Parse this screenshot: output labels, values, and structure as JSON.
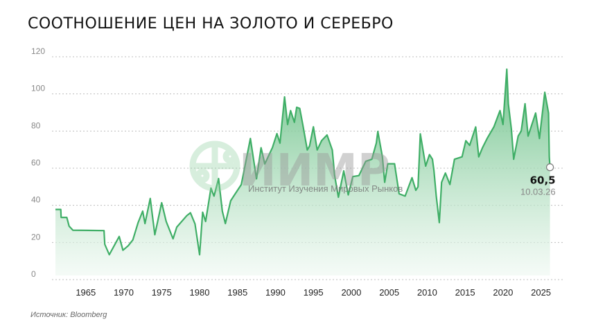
{
  "chart_data": {
    "type": "area",
    "title": "Соотношение цен на золото и серебро",
    "xlabel": "",
    "ylabel": "",
    "xlim": [
      1961,
      2026.5
    ],
    "ylim": [
      0,
      120
    ],
    "grid": true,
    "yticks": [
      "0",
      "20",
      "40",
      "60",
      "80",
      "100",
      "120"
    ],
    "xticks": [
      "1965",
      "1970",
      "1975",
      "1980",
      "1985",
      "1990",
      "1995",
      "2000",
      "2005",
      "2010",
      "2015",
      "2020",
      "2025"
    ],
    "series": [
      {
        "x": [
          1961.0,
          1961.7,
          1961.75,
          1962.5,
          1962.8,
          1963.3,
          1967.4,
          1967.5,
          1968.1,
          1969.4,
          1969.9,
          1970.6,
          1971.2,
          1971.9,
          1972.5,
          1972.8,
          1973.5,
          1974.1,
          1975.0,
          1975.6,
          1976.5,
          1977.0,
          1978.3,
          1978.8,
          1979.4,
          1980.0,
          1980.4,
          1980.8,
          1981.5,
          1981.9,
          1982.5,
          1983.0,
          1983.4,
          1984.1,
          1984.7,
          1985.5,
          1986.7,
          1987.5,
          1988.1,
          1988.6,
          1989.6,
          1990.2,
          1990.6,
          1991.2,
          1991.6,
          1992.0,
          1992.5,
          1992.8,
          1993.2,
          1993.6,
          1994.2,
          1994.5,
          1995.0,
          1995.5,
          1996.1,
          1996.8,
          1997.5,
          1997.8,
          1998.3,
          1999.0,
          1999.6,
          2000.2,
          2001.0,
          2001.9,
          2002.7,
          2003.3,
          2003.5,
          2004.1,
          2004.4,
          2004.8,
          2005.7,
          2006.3,
          2007.1,
          2008.0,
          2008.5,
          2008.8,
          2009.1,
          2009.5,
          2009.8,
          2010.3,
          2010.7,
          2010.9,
          2011.2,
          2011.6,
          2011.9,
          2012.4,
          2013.0,
          2013.6,
          2014.6,
          2015.1,
          2015.6,
          2016.4,
          2016.8,
          2017.3,
          2017.9,
          2018.8,
          2019.6,
          2020.0,
          2020.5,
          2020.7,
          2021.1,
          2021.4,
          2022.0,
          2022.4,
          2022.9,
          2023.3,
          2024.3,
          2024.8,
          2025.5,
          2026.0,
          2026.1,
          2026.19
        ],
        "values": [
          37.8,
          37.8,
          33.5,
          33.5,
          28.8,
          26.6,
          26.4,
          19.0,
          13.4,
          23.2,
          15.8,
          18.3,
          21.4,
          30.7,
          36.9,
          30.2,
          43.7,
          24.2,
          41.4,
          31.3,
          22.0,
          28.3,
          34.4,
          36.0,
          30.0,
          13.4,
          36.3,
          31.3,
          49.3,
          45.0,
          54.4,
          36.9,
          30.2,
          42.5,
          46.2,
          51.2,
          76.0,
          54.3,
          71.0,
          62.3,
          71.1,
          78.6,
          73.5,
          98.4,
          83.5,
          91.0,
          84.7,
          92.8,
          92.2,
          83.5,
          69.8,
          72.0,
          82.3,
          69.8,
          74.9,
          77.9,
          69.8,
          56.2,
          44.4,
          58.6,
          45.6,
          55.5,
          56.0,
          63.7,
          64.8,
          73.5,
          79.8,
          66.1,
          52.4,
          62.4,
          62.4,
          46.2,
          45.0,
          54.9,
          48.1,
          50.0,
          78.5,
          68.6,
          61.1,
          67.3,
          64.8,
          58.6,
          45.0,
          30.7,
          52.4,
          57.4,
          51.2,
          64.8,
          66.1,
          74.8,
          72.3,
          82.2,
          66.1,
          71.1,
          76.0,
          82.3,
          91.0,
          83.5,
          113.3,
          94.7,
          81.0,
          64.8,
          77.3,
          80.0,
          94.7,
          77.3,
          89.7,
          76.0,
          100.9,
          89.7,
          66.1,
          60.5
        ]
      }
    ],
    "last_point": {
      "value": "60,5",
      "date": "10.03.26"
    },
    "colors": {
      "line": "#3fae66",
      "fill_top": "#5dbb7c",
      "fill_bottom": "#eef8f1",
      "grid": "#bdbdbd"
    }
  },
  "watermark": {
    "logo": "ИИМР",
    "subtitle": "Институт Изучения Мировых Рынков"
  },
  "source": "Источник: Bloomberg"
}
